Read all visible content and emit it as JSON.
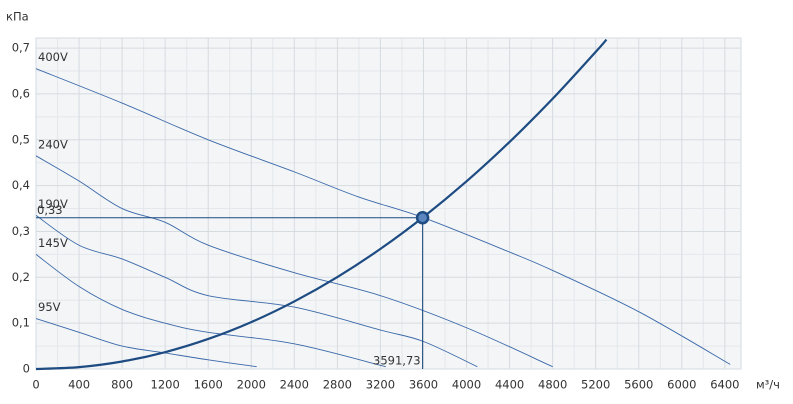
{
  "chart_data": {
    "type": "line",
    "y_label": "кПа",
    "x_label": "м³/ч",
    "xlim": [
      0,
      6550
    ],
    "ylim": [
      0,
      0.722
    ],
    "xticks": [
      0,
      400,
      800,
      1200,
      1600,
      2000,
      2400,
      2800,
      3200,
      3600,
      4000,
      4400,
      4800,
      5200,
      5600,
      6000,
      6400
    ],
    "yticks": [
      0,
      {
        "value": 0.1,
        "label": "0,1"
      },
      {
        "value": 0.2,
        "label": "0,2"
      },
      {
        "value": 0.3,
        "label": "0,3"
      },
      {
        "value": 0.4,
        "label": "0,4"
      },
      {
        "value": 0.5,
        "label": "0,5"
      },
      {
        "value": 0.6,
        "label": "0,6"
      },
      {
        "value": 0.7,
        "label": "0,7"
      }
    ],
    "grid": true,
    "series": [
      {
        "name": "400V",
        "color": "#3a68a8",
        "x": [
          0,
          800,
          1600,
          2400,
          3000,
          3600,
          4400,
          4800,
          5600,
          6450
        ],
        "values": [
          0.655,
          0.58,
          0.5,
          0.43,
          0.375,
          0.33,
          0.255,
          0.215,
          0.125,
          0.01
        ]
      },
      {
        "name": "240V",
        "color": "#3a68a8",
        "x": [
          0,
          400,
          800,
          1200,
          1600,
          2400,
          3200,
          4000,
          4800
        ],
        "values": [
          0.465,
          0.41,
          0.35,
          0.32,
          0.27,
          0.21,
          0.16,
          0.09,
          0.005
        ]
      },
      {
        "name": "190V",
        "color": "#3a68a8",
        "x": [
          0,
          400,
          800,
          1200,
          1600,
          2400,
          3200,
          3600,
          4100
        ],
        "values": [
          0.335,
          0.27,
          0.24,
          0.2,
          0.16,
          0.135,
          0.085,
          0.06,
          0.005
        ]
      },
      {
        "name": "145V",
        "color": "#3a68a8",
        "x": [
          0,
          400,
          800,
          1200,
          1600,
          2400,
          3250
        ],
        "values": [
          0.25,
          0.18,
          0.13,
          0.1,
          0.08,
          0.055,
          0.005
        ]
      },
      {
        "name": "95V",
        "color": "#3a68a8",
        "x": [
          0,
          400,
          800,
          1200,
          1600,
          2050
        ],
        "values": [
          0.11,
          0.08,
          0.05,
          0.035,
          0.02,
          0.005
        ]
      }
    ],
    "system_curve": {
      "color": "#1d4b82",
      "x": [
        0,
        400,
        800,
        1200,
        1600,
        2000,
        2400,
        2800,
        3200,
        3600,
        4000,
        4400,
        4800,
        5200,
        5300
      ],
      "values": [
        0,
        0.0041,
        0.0164,
        0.0368,
        0.0655,
        0.1023,
        0.1474,
        0.2006,
        0.262,
        0.3316,
        0.4093,
        0.4953,
        0.5894,
        0.6917,
        0.7186
      ]
    },
    "operating_point": {
      "x": 3591.73,
      "y": 0.33,
      "value_labels": {
        "x": "3591,73",
        "y": "0,33"
      }
    }
  }
}
